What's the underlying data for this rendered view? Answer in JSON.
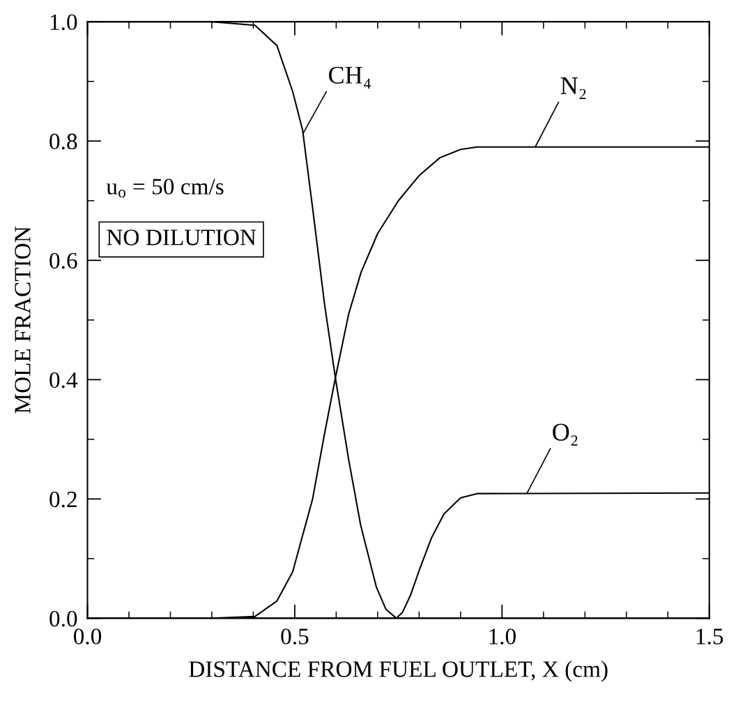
{
  "chart_data": {
    "type": "line",
    "xlabel": "DISTANCE FROM FUEL OUTLET, X (cm)",
    "ylabel": "MOLE FRACTION",
    "xlim": [
      0.0,
      1.5
    ],
    "ylim": [
      0.0,
      1.0
    ],
    "xticks": [
      {
        "value": 0.0,
        "label": "0.0"
      },
      {
        "value": 0.5,
        "label": "0.5"
      },
      {
        "value": 1.0,
        "label": "1.0"
      },
      {
        "value": 1.5,
        "label": "1.5"
      }
    ],
    "yticks": [
      {
        "value": 0.0,
        "label": "0.0"
      },
      {
        "value": 0.2,
        "label": "0.2"
      },
      {
        "value": 0.4,
        "label": "0.4"
      },
      {
        "value": 0.6,
        "label": "0.6"
      },
      {
        "value": 0.8,
        "label": "0.8"
      },
      {
        "value": 1.0,
        "label": "1.0"
      }
    ],
    "grid": false,
    "legend": false,
    "marker": "none",
    "line_style": "solid",
    "series": [
      {
        "name": "CH₄",
        "color": "#000000",
        "x": [
          0.0,
          0.3,
          0.404,
          0.457,
          0.495,
          0.519,
          0.543,
          0.572,
          0.598,
          0.63,
          0.659,
          0.697,
          0.72,
          0.745,
          1.5
        ],
        "values": [
          1.0,
          1.0,
          0.994,
          0.96,
          0.883,
          0.818,
          0.688,
          0.526,
          0.403,
          0.266,
          0.156,
          0.052,
          0.015,
          0.0,
          0.0
        ]
      },
      {
        "name": "N₂",
        "color": "#000000",
        "x": [
          0.0,
          0.3,
          0.404,
          0.457,
          0.495,
          0.543,
          0.572,
          0.598,
          0.63,
          0.66,
          0.7,
          0.75,
          0.8,
          0.85,
          0.9,
          0.94,
          1.5
        ],
        "values": [
          0.0,
          0.0,
          0.003,
          0.029,
          0.078,
          0.2,
          0.31,
          0.403,
          0.51,
          0.58,
          0.645,
          0.7,
          0.742,
          0.772,
          0.786,
          0.79,
          0.79
        ]
      },
      {
        "name": "O₂",
        "color": "#000000",
        "x": [
          0.0,
          0.7,
          0.745,
          0.76,
          0.78,
          0.8,
          0.83,
          0.86,
          0.9,
          0.94,
          1.5
        ],
        "values": [
          0.0,
          0.0,
          0.0,
          0.01,
          0.04,
          0.08,
          0.135,
          0.175,
          0.202,
          0.209,
          0.21
        ]
      }
    ],
    "annotations": [
      "u$_{o}$ = 50 cm/s",
      "NO DILUTION"
    ]
  }
}
